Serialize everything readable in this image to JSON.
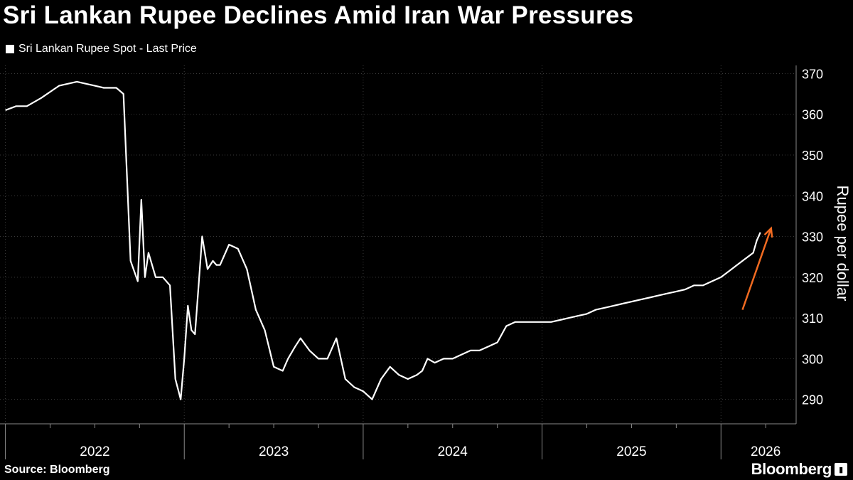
{
  "title": "Sri Lankan Rupee Declines Amid Iran War Pressures",
  "source": "Source: Bloomberg",
  "logo_text": "Bloomberg",
  "colors": {
    "background": "#000000",
    "line": "#ffffff",
    "arrow": "#f26b21",
    "grid": "#3a3a3a"
  },
  "chart_data": {
    "type": "line",
    "title": "Sri Lankan Rupee Declines Amid Iran War Pressures",
    "ylabel": "Rupee per dollar",
    "xlabel": "",
    "ylim": [
      284,
      372
    ],
    "yticks": [
      290,
      300,
      310,
      320,
      330,
      340,
      350,
      360,
      370
    ],
    "y_axis_position": "right",
    "xticks": [
      "2022",
      "2023",
      "2024",
      "2025",
      "2026"
    ],
    "grid": "horizontal dotted",
    "legend_placement": "top-left",
    "series": [
      {
        "name": "Sri Lankan Rupee Spot - Last Price",
        "x": [
          2022.0,
          2022.06,
          2022.12,
          2022.2,
          2022.3,
          2022.4,
          2022.5,
          2022.55,
          2022.62,
          2022.66,
          2022.7,
          2022.74,
          2022.76,
          2022.78,
          2022.8,
          2022.84,
          2022.88,
          2022.92,
          2022.95,
          2022.98,
          2023.0,
          2023.02,
          2023.04,
          2023.06,
          2023.08,
          2023.1,
          2023.13,
          2023.16,
          2023.18,
          2023.2,
          2023.22,
          2023.25,
          2023.3,
          2023.35,
          2023.4,
          2023.45,
          2023.5,
          2023.55,
          2023.58,
          2023.62,
          2023.65,
          2023.7,
          2023.75,
          2023.8,
          2023.85,
          2023.9,
          2023.95,
          2024.0,
          2024.05,
          2024.1,
          2024.15,
          2024.2,
          2024.25,
          2024.3,
          2024.33,
          2024.36,
          2024.4,
          2024.45,
          2024.5,
          2024.55,
          2024.6,
          2024.65,
          2024.7,
          2024.75,
          2024.8,
          2024.85,
          2024.9,
          2024.95,
          2025.0,
          2025.05,
          2025.1,
          2025.15,
          2025.2,
          2025.25,
          2025.3,
          2025.35,
          2025.4,
          2025.45,
          2025.5,
          2025.55,
          2025.6,
          2025.65,
          2025.7,
          2025.75,
          2025.8,
          2025.85,
          2025.9,
          2025.95,
          2026.0,
          2026.03,
          2026.06,
          2026.09,
          2026.12,
          2026.15,
          2026.18,
          2026.2,
          2026.22
        ],
        "values": [
          361,
          362,
          362,
          364,
          367,
          368,
          367,
          366.5,
          366.5,
          365,
          324,
          319,
          339,
          320,
          326,
          320,
          320,
          318,
          295,
          290,
          300,
          313,
          307,
          306,
          318,
          330,
          322,
          324,
          323,
          323,
          325,
          328,
          327,
          322,
          312,
          307,
          298,
          297,
          300,
          303,
          305,
          302,
          300,
          300,
          305,
          295,
          293,
          292,
          290,
          295,
          298,
          296,
          295,
          296,
          297,
          300,
          299,
          300,
          300,
          301,
          302,
          302,
          303,
          304,
          308,
          309,
          309,
          309,
          309,
          309,
          309.5,
          310,
          310.5,
          311,
          312,
          312.5,
          313,
          313.5,
          314,
          314.5,
          315,
          315.5,
          316,
          316.5,
          317,
          318,
          318,
          319,
          320,
          321,
          322,
          323,
          324,
          325,
          326,
          329,
          331
        ]
      }
    ],
    "annotations": [
      {
        "type": "arrow",
        "color": "orange",
        "from": [
          2026.12,
          312
        ],
        "to": [
          2026.28,
          332
        ]
      }
    ]
  }
}
